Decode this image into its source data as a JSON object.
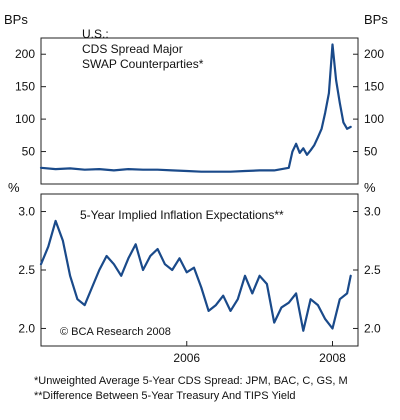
{
  "chart_data": [
    {
      "type": "line",
      "panel": "top",
      "title": "U.S.:",
      "subtitle_lines": [
        "CDS Spread Major",
        "SWAP Counterparties*"
      ],
      "ylabel_left": "BPs",
      "ylabel_right": "BPs",
      "yticks": [
        50,
        100,
        150,
        200
      ],
      "ylim": [
        0,
        225
      ],
      "xlim": [
        2004.0,
        2008.35
      ],
      "grid": false,
      "color": "#1a4a8a",
      "series": [
        {
          "x": [
            2004.0,
            2004.2,
            2004.4,
            2004.6,
            2004.8,
            2005.0,
            2005.2,
            2005.4,
            2005.6,
            2005.8,
            2006.0,
            2006.2,
            2006.4,
            2006.6,
            2006.8,
            2007.0,
            2007.2,
            2007.4,
            2007.45,
            2007.5,
            2007.55,
            2007.6,
            2007.65,
            2007.7,
            2007.75,
            2007.8,
            2007.85,
            2007.9,
            2007.95,
            2008.0,
            2008.05,
            2008.1,
            2008.15,
            2008.2,
            2008.25
          ],
          "values": [
            25,
            23,
            24,
            22,
            23,
            21,
            23,
            22,
            22,
            21,
            20,
            19,
            19,
            19,
            20,
            21,
            21,
            25,
            50,
            62,
            48,
            55,
            45,
            52,
            60,
            72,
            85,
            110,
            140,
            215,
            160,
            125,
            95,
            85,
            88
          ]
        }
      ]
    },
    {
      "type": "line",
      "panel": "bottom",
      "title": "5-Year Implied Inflation Expectations**",
      "ylabel_left": "%",
      "ylabel_right": "%",
      "yticks": [
        2.0,
        2.5,
        3.0
      ],
      "ylim": [
        1.85,
        3.15
      ],
      "xlim": [
        2004.0,
        2008.35
      ],
      "xticks": [
        "2006",
        "2008"
      ],
      "xtick_values": [
        2006,
        2008
      ],
      "grid": false,
      "color": "#1a4a8a",
      "series": [
        {
          "x": [
            2004.0,
            2004.1,
            2004.2,
            2004.3,
            2004.4,
            2004.5,
            2004.6,
            2004.7,
            2004.8,
            2004.9,
            2005.0,
            2005.1,
            2005.2,
            2005.3,
            2005.4,
            2005.5,
            2005.6,
            2005.7,
            2005.8,
            2005.9,
            2006.0,
            2006.1,
            2006.2,
            2006.3,
            2006.4,
            2006.5,
            2006.6,
            2006.7,
            2006.8,
            2006.9,
            2007.0,
            2007.1,
            2007.2,
            2007.3,
            2007.4,
            2007.5,
            2007.6,
            2007.7,
            2007.8,
            2007.9,
            2008.0,
            2008.1,
            2008.2,
            2008.25
          ],
          "values": [
            2.55,
            2.7,
            2.92,
            2.75,
            2.45,
            2.25,
            2.2,
            2.35,
            2.5,
            2.62,
            2.55,
            2.45,
            2.6,
            2.72,
            2.5,
            2.62,
            2.68,
            2.55,
            2.5,
            2.6,
            2.48,
            2.52,
            2.35,
            2.15,
            2.2,
            2.28,
            2.15,
            2.25,
            2.45,
            2.3,
            2.45,
            2.38,
            2.05,
            2.18,
            2.22,
            2.3,
            1.98,
            2.25,
            2.2,
            2.08,
            2.0,
            2.25,
            2.3,
            2.45
          ]
        }
      ],
      "annotation": "© BCA Research 2008"
    }
  ],
  "footnotes": [
    "*Unweighted Average 5-Year CDS Spread: JPM, BAC, C, GS, M",
    "**Difference Between 5-Year Treasury And TIPS Yield"
  ]
}
